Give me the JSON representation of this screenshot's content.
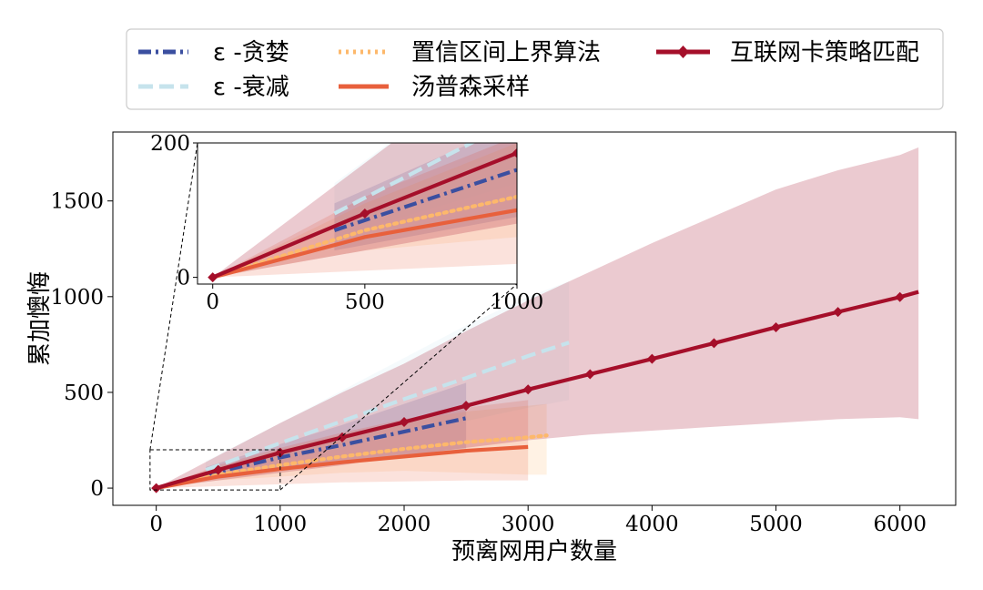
{
  "chart_data": {
    "type": "line",
    "xlabel": "预离网用户数量",
    "ylabel": "累加懊悔",
    "xlim": [
      -350,
      6450
    ],
    "ylim": [
      -90,
      1860
    ],
    "xticks": [
      0,
      1000,
      2000,
      3000,
      4000,
      5000,
      6000
    ],
    "yticks": [
      0,
      500,
      1000,
      1500
    ],
    "legend": "top (above plot, 3 columns)",
    "grid": false,
    "series": [
      {
        "name": "ε -贪婪",
        "style": "dashdot",
        "color": "#3b4fa0",
        "x": [
          400,
          1000,
          1500,
          2000,
          2500
        ],
        "y": [
          70,
          160,
          225,
          295,
          365
        ],
        "band_hi": [
          110,
          230,
          330,
          440,
          550
        ],
        "band_lo": [
          40,
          90,
          130,
          170,
          200
        ]
      },
      {
        "name": "ε -衰减",
        "style": "dashed",
        "color": "#c6e3ec",
        "x": [
          400,
          1000,
          1500,
          2000,
          2500,
          3000,
          3330
        ],
        "y": [
          95,
          235,
          350,
          465,
          575,
          690,
          760
        ],
        "band_hi": [
          140,
          340,
          510,
          680,
          850,
          1000,
          1080
        ],
        "band_lo": [
          60,
          140,
          210,
          290,
          350,
          420,
          460
        ]
      },
      {
        "name": "置信区间上界算法",
        "style": "dotted",
        "color": "#fdb86b",
        "x": [
          0,
          500,
          1000,
          1500,
          2000,
          2500,
          3000,
          3150
        ],
        "y": [
          0,
          70,
          120,
          165,
          205,
          240,
          265,
          275
        ],
        "band_hi": [
          0,
          110,
          200,
          280,
          350,
          400,
          430,
          440
        ],
        "band_lo": [
          0,
          40,
          60,
          80,
          90,
          80,
          70,
          70
        ]
      },
      {
        "name": "汤普森采样",
        "style": "solid",
        "color": "#e8603c",
        "x": [
          0,
          500,
          1000,
          1500,
          2000,
          2500,
          3000
        ],
        "y": [
          0,
          60,
          100,
          135,
          165,
          195,
          215
        ],
        "band_hi": [
          0,
          120,
          210,
          290,
          360,
          420,
          460
        ],
        "band_lo": [
          0,
          10,
          20,
          30,
          35,
          40,
          40
        ]
      },
      {
        "name": "互联网卡策略匹配",
        "style": "solid-marker",
        "color": "#a50f2a",
        "x": [
          0,
          500,
          1000,
          1500,
          2000,
          2500,
          3000,
          3500,
          4000,
          4500,
          5000,
          5500,
          6000,
          6150
        ],
        "y": [
          0,
          95,
          185,
          265,
          345,
          430,
          515,
          595,
          675,
          757,
          840,
          920,
          998,
          1025
        ],
        "markers_upto": 6000,
        "band_hi": [
          0,
          170,
          340,
          500,
          650,
          820,
          980,
          1130,
          1280,
          1420,
          1560,
          1660,
          1740,
          1780
        ],
        "band_lo": [
          0,
          40,
          80,
          120,
          170,
          210,
          250,
          280,
          300,
          320,
          340,
          360,
          370,
          360
        ]
      }
    ],
    "inset": {
      "xlim": [
        -50,
        1000
      ],
      "ylim": [
        -10,
        200
      ],
      "xticks": [
        0,
        500,
        1000
      ],
      "yticks": [
        0,
        200
      ],
      "zoom_region": {
        "x": [
          -50,
          1000
        ],
        "y": [
          -10,
          200
        ]
      }
    }
  }
}
